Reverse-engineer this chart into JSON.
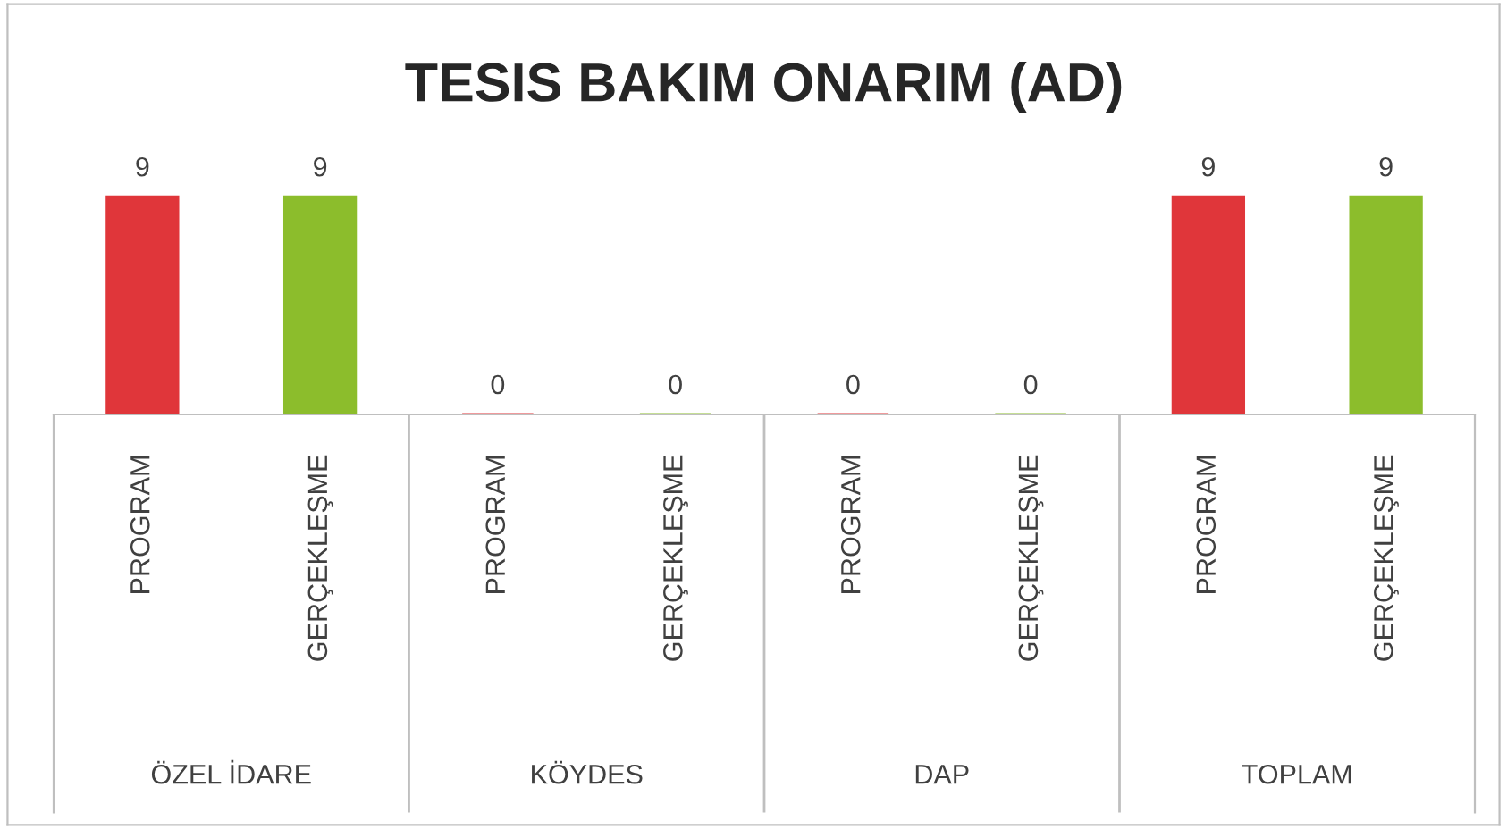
{
  "chart_data": {
    "type": "bar",
    "title": "TESIS BAKIM ONARIM (AD)",
    "categories": [
      "ÖZEL İDARE",
      "KÖYDES",
      "DAP",
      "TOPLAM"
    ],
    "series": [
      {
        "name": "PROGRAM",
        "color": "#e0363a",
        "values": [
          9,
          0,
          0,
          9
        ]
      },
      {
        "name": "GERÇEKLEŞME",
        "color": "#8cbd2c",
        "values": [
          9,
          0,
          0,
          9
        ]
      }
    ],
    "data_labels": true
  }
}
